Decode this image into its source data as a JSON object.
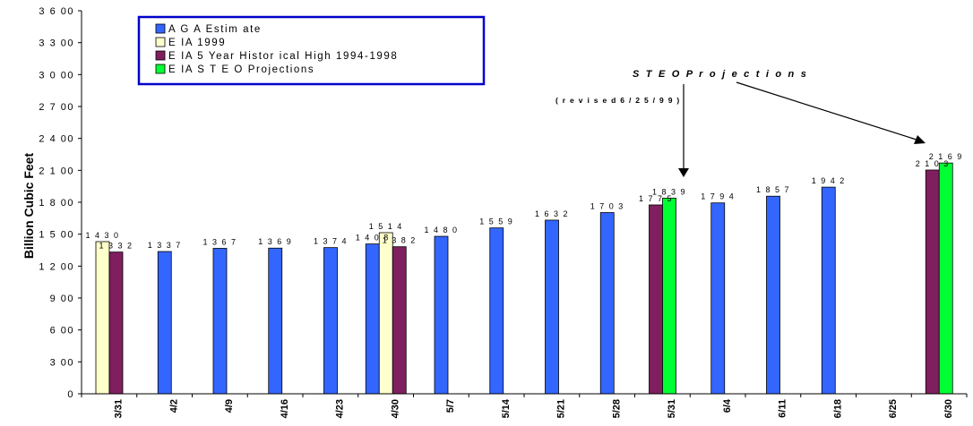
{
  "chart_data": {
    "type": "bar",
    "title": "",
    "xlabel": "",
    "ylabel": "Billion Cubic Feet",
    "ylim": [
      0,
      3600
    ],
    "yticks": [
      0,
      300,
      600,
      900,
      1200,
      1500,
      1800,
      2100,
      2400,
      2700,
      3000,
      3300,
      3600
    ],
    "ytick_labels": [
      "0",
      "3 00",
      "6 00",
      "9 00",
      "1 2 00",
      "1 5 00",
      "1 8 00",
      "2 1 00",
      "2 4 00",
      "2 7 00",
      "3 0 00",
      "3 3 00",
      "3 6 00"
    ],
    "categories": [
      "3/31",
      "4/2",
      "4/9",
      "4/16",
      "4/23",
      "4/30",
      "5/7",
      "5/14",
      "5/21",
      "5/28",
      "5/31",
      "6/4",
      "6/11",
      "6/18",
      "6/25",
      "6/30"
    ],
    "grid": false,
    "legend_position": "top-left",
    "series": [
      {
        "name": "AGA Estimate",
        "color": "#3366ff",
        "values": [
          null,
          1337,
          1367,
          1369,
          1374,
          1408,
          1480,
          1559,
          1632,
          1703,
          null,
          1794,
          1857,
          1942,
          null,
          null
        ],
        "labels": [
          null,
          "1 3 3 7",
          "1 3 6 7",
          "1 3 6 9",
          "1 3 7 4",
          "1 4 0 8",
          "1 4 8 0",
          "1 5 5 9",
          "1 6 3 2",
          "1 7 0 3",
          null,
          "1 7 9 4",
          "1 8 5 7",
          "1 9 4 2",
          null,
          null
        ]
      },
      {
        "name": "EIA 1999",
        "color": "#ffffcc",
        "values": [
          1430,
          null,
          null,
          null,
          null,
          1514,
          null,
          null,
          null,
          null,
          null,
          null,
          null,
          null,
          null,
          null
        ],
        "labels": [
          "1 4 3 0",
          null,
          null,
          null,
          null,
          "1 5 1 4",
          null,
          null,
          null,
          null,
          null,
          null,
          null,
          null,
          null,
          null
        ]
      },
      {
        "name": "EIA 5 Year Historical High 1994-1998",
        "color": "#7f1f5f",
        "values": [
          1332,
          null,
          null,
          null,
          null,
          1382,
          null,
          null,
          null,
          null,
          1775,
          null,
          null,
          null,
          null,
          2103
        ],
        "labels": [
          "1 3 3 2",
          null,
          null,
          null,
          null,
          "1 3 8 2",
          null,
          null,
          null,
          null,
          "1 7 7 5",
          null,
          null,
          null,
          null,
          "2 1 0 3"
        ]
      },
      {
        "name": "EIA STEO Projections",
        "color": "#00ff33",
        "values": [
          null,
          null,
          null,
          null,
          null,
          null,
          null,
          null,
          null,
          null,
          1839,
          null,
          null,
          null,
          null,
          2169
        ],
        "labels": [
          null,
          null,
          null,
          null,
          null,
          null,
          null,
          null,
          null,
          null,
          "1 8 3 9",
          null,
          null,
          null,
          null,
          "2 1 6 9"
        ]
      }
    ],
    "legend_labels": [
      "A G A  Estim ate",
      "E IA  1999",
      "E IA  5  Year Histor ical High  1994-1998",
      "E IA  S T E O  Projections"
    ],
    "annotations": [
      {
        "text": "S T E O  P r o j e c t i o n s",
        "kind": "title"
      },
      {
        "text": "( r e v i s e d  6 / 2 5 / 9 9 )",
        "kind": "subtitle"
      }
    ]
  }
}
